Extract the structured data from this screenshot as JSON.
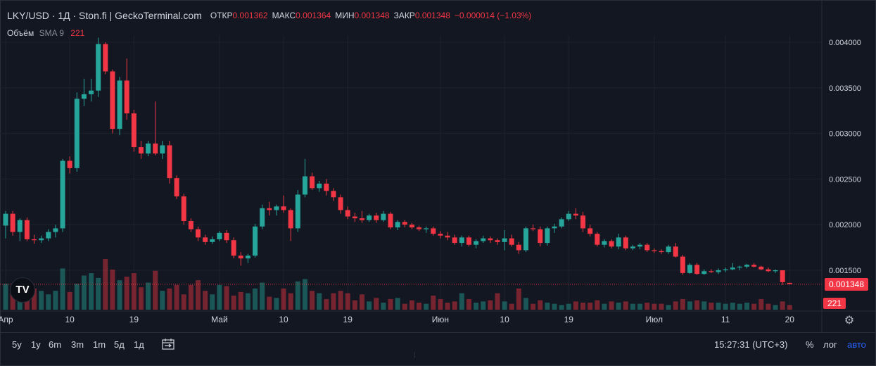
{
  "header": {
    "title": "LKY/USD · 1Д · Ston.fi | GeckoTerminal.com",
    "open_label": "ОТКР",
    "open_value": "0.001362",
    "high_label": "МАКС",
    "high_value": "0.001364",
    "low_label": "МИН",
    "low_value": "0.001348",
    "close_label": "ЗАКР",
    "close_value": "0.001348",
    "change": "−0.000014 (−1.03%)"
  },
  "volume_legend": {
    "label": "Объём",
    "sma": "SMA 9",
    "value": "221"
  },
  "price_tag": "0.001348",
  "volume_tag": "221",
  "toolbar": {
    "timeframes": [
      "5y",
      "1y",
      "6m",
      "3m",
      "1m",
      "5д",
      "1д"
    ],
    "clock": "15:27:31 (UTC+3)",
    "percent": "%",
    "log": "лог",
    "auto": "авто"
  },
  "colors": {
    "up": "#26a69a",
    "down": "#f23645",
    "background": "#131722",
    "grid": "#1e222d",
    "text": "#d1d4dc",
    "auto": "#2962ff"
  },
  "icons": {
    "settings": "gear-icon",
    "logo": "tradingview-logo-icon",
    "calendar": "calendar-range-icon"
  },
  "chart_data": {
    "type": "candlestick",
    "y_ticks": [
      "0.004000",
      "0.003500",
      "0.003000",
      "0.002500",
      "0.002000",
      "0.001500"
    ],
    "ylim": [
      0.0011,
      0.0042
    ],
    "x_tick_labels": [
      {
        "label": "Апр",
        "day": 0
      },
      {
        "label": "10",
        "day": 9
      },
      {
        "label": "19",
        "day": 18
      },
      {
        "label": "Май",
        "day": 30
      },
      {
        "label": "10",
        "day": 39
      },
      {
        "label": "19",
        "day": 48
      },
      {
        "label": "Июн",
        "day": 61
      },
      {
        "label": "10",
        "day": 70
      },
      {
        "label": "19",
        "day": 79
      },
      {
        "label": "Июл",
        "day": 91
      },
      {
        "label": "11",
        "day": 101
      },
      {
        "label": "20",
        "day": 110
      }
    ],
    "candles": [
      [
        0.00199,
        0.00215,
        0.00185,
        0.00212
      ],
      [
        0.00212,
        0.00215,
        0.00188,
        0.00192
      ],
      [
        0.00192,
        0.00207,
        0.00182,
        0.00205
      ],
      [
        0.00205,
        0.00208,
        0.00182,
        0.00184
      ],
      [
        0.00184,
        0.00189,
        0.00179,
        0.00183
      ],
      [
        0.00183,
        0.00188,
        0.0018,
        0.00185
      ],
      [
        0.00185,
        0.00195,
        0.00182,
        0.00192
      ],
      [
        0.00192,
        0.002,
        0.00186,
        0.00196
      ],
      [
        0.00196,
        0.00272,
        0.00192,
        0.0027
      ],
      [
        0.0027,
        0.00275,
        0.00256,
        0.00262
      ],
      [
        0.00262,
        0.00345,
        0.00258,
        0.00338
      ],
      [
        0.00338,
        0.0036,
        0.0033,
        0.00343
      ],
      [
        0.00343,
        0.0036,
        0.00335,
        0.00347
      ],
      [
        0.00347,
        0.00405,
        0.0034,
        0.00398
      ],
      [
        0.00398,
        0.004,
        0.00365,
        0.00368
      ],
      [
        0.00368,
        0.0037,
        0.003,
        0.00305
      ],
      [
        0.00305,
        0.00362,
        0.00298,
        0.00358
      ],
      [
        0.00358,
        0.00382,
        0.00315,
        0.00322
      ],
      [
        0.00322,
        0.00326,
        0.0028,
        0.00285
      ],
      [
        0.00285,
        0.00292,
        0.00272,
        0.00278
      ],
      [
        0.00278,
        0.00292,
        0.00275,
        0.00289
      ],
      [
        0.00289,
        0.00335,
        0.00276,
        0.00278
      ],
      [
        0.00278,
        0.00292,
        0.00272,
        0.00287
      ],
      [
        0.00287,
        0.00292,
        0.00245,
        0.00251
      ],
      [
        0.00251,
        0.00254,
        0.00228,
        0.00231
      ],
      [
        0.00231,
        0.00234,
        0.002,
        0.00204
      ],
      [
        0.00204,
        0.00207,
        0.00192,
        0.00195
      ],
      [
        0.00195,
        0.00198,
        0.00182,
        0.00186
      ],
      [
        0.00186,
        0.00189,
        0.00178,
        0.00181
      ],
      [
        0.00181,
        0.00187,
        0.00179,
        0.00184
      ],
      [
        0.00184,
        0.00193,
        0.00182,
        0.00191
      ],
      [
        0.00191,
        0.00194,
        0.0018,
        0.00183
      ],
      [
        0.00183,
        0.00186,
        0.00163,
        0.00166
      ],
      [
        0.00166,
        0.0017,
        0.00155,
        0.00163
      ],
      [
        0.00163,
        0.00168,
        0.00158,
        0.00166
      ],
      [
        0.00166,
        0.00201,
        0.00164,
        0.00198
      ],
      [
        0.00198,
        0.00222,
        0.00195,
        0.00218
      ],
      [
        0.00218,
        0.00225,
        0.0021,
        0.00216
      ],
      [
        0.00216,
        0.00222,
        0.0021,
        0.0022
      ],
      [
        0.0022,
        0.00232,
        0.00213,
        0.00216
      ],
      [
        0.00216,
        0.00218,
        0.00182,
        0.00196
      ],
      [
        0.00196,
        0.00238,
        0.00192,
        0.00233
      ],
      [
        0.00233,
        0.00272,
        0.0023,
        0.00253
      ],
      [
        0.00253,
        0.00257,
        0.00238,
        0.0024
      ],
      [
        0.0024,
        0.00248,
        0.00236,
        0.00245
      ],
      [
        0.00245,
        0.0025,
        0.00232,
        0.00237
      ],
      [
        0.00237,
        0.0024,
        0.00226,
        0.0023
      ],
      [
        0.0023,
        0.00233,
        0.00212,
        0.00216
      ],
      [
        0.00216,
        0.0022,
        0.00206,
        0.00209
      ],
      [
        0.00209,
        0.00213,
        0.00203,
        0.00207
      ],
      [
        0.00207,
        0.00215,
        0.00202,
        0.00205
      ],
      [
        0.00205,
        0.00212,
        0.00203,
        0.0021
      ],
      [
        0.0021,
        0.00213,
        0.00202,
        0.00205
      ],
      [
        0.00205,
        0.00215,
        0.00203,
        0.00212
      ],
      [
        0.00212,
        0.00214,
        0.00195,
        0.00197
      ],
      [
        0.00197,
        0.00205,
        0.00194,
        0.00203
      ],
      [
        0.00203,
        0.00205,
        0.00197,
        0.002
      ],
      [
        0.002,
        0.00202,
        0.00195,
        0.00197
      ],
      [
        0.00197,
        0.00199,
        0.00193,
        0.00195
      ],
      [
        0.00195,
        0.00198,
        0.00191,
        0.00196
      ],
      [
        0.00196,
        0.00198,
        0.00188,
        0.0019
      ],
      [
        0.0019,
        0.00193,
        0.00185,
        0.00188
      ],
      [
        0.00188,
        0.00192,
        0.00183,
        0.00186
      ],
      [
        0.00186,
        0.00189,
        0.00178,
        0.0018
      ],
      [
        0.0018,
        0.00188,
        0.00176,
        0.00186
      ],
      [
        0.00186,
        0.00188,
        0.00176,
        0.00178
      ],
      [
        0.00178,
        0.00184,
        0.00174,
        0.00182
      ],
      [
        0.00182,
        0.00188,
        0.0018,
        0.00185
      ],
      [
        0.00185,
        0.00187,
        0.0018,
        0.00183
      ],
      [
        0.00183,
        0.00185,
        0.00178,
        0.00181
      ],
      [
        0.00181,
        0.00194,
        0.00172,
        0.00185
      ],
      [
        0.00185,
        0.00189,
        0.00176,
        0.00178
      ],
      [
        0.00178,
        0.00181,
        0.00168,
        0.00172
      ],
      [
        0.00172,
        0.00198,
        0.0017,
        0.00196
      ],
      [
        0.00196,
        0.002,
        0.00193,
        0.00195
      ],
      [
        0.00195,
        0.00198,
        0.00176,
        0.0018
      ],
      [
        0.0018,
        0.00198,
        0.00177,
        0.00196
      ],
      [
        0.00196,
        0.00201,
        0.00191,
        0.00198
      ],
      [
        0.00198,
        0.00208,
        0.00196,
        0.00206
      ],
      [
        0.00206,
        0.00215,
        0.00204,
        0.00212
      ],
      [
        0.00212,
        0.00218,
        0.00206,
        0.0021
      ],
      [
        0.0021,
        0.00214,
        0.00192,
        0.00196
      ],
      [
        0.00196,
        0.002,
        0.00187,
        0.0019
      ],
      [
        0.0019,
        0.00192,
        0.00176,
        0.00178
      ],
      [
        0.00178,
        0.00184,
        0.00175,
        0.00182
      ],
      [
        0.00182,
        0.00184,
        0.00174,
        0.00176
      ],
      [
        0.00176,
        0.0019,
        0.00173,
        0.00186
      ],
      [
        0.00186,
        0.00188,
        0.00172,
        0.00174
      ],
      [
        0.00174,
        0.00178,
        0.00172,
        0.00176
      ],
      [
        0.00176,
        0.0018,
        0.00173,
        0.00178
      ],
      [
        0.00178,
        0.0018,
        0.0017,
        0.00172
      ],
      [
        0.00172,
        0.00174,
        0.00169,
        0.00171
      ],
      [
        0.00171,
        0.00173,
        0.00168,
        0.0017
      ],
      [
        0.0017,
        0.00178,
        0.00168,
        0.00176
      ],
      [
        0.00176,
        0.0018,
        0.00164,
        0.00165
      ],
      [
        0.00165,
        0.00167,
        0.00145,
        0.00147
      ],
      [
        0.00147,
        0.00158,
        0.00146,
        0.00156
      ],
      [
        0.00156,
        0.00158,
        0.00145,
        0.00146
      ],
      [
        0.00146,
        0.00151,
        0.00145,
        0.00149
      ],
      [
        0.00149,
        0.00151,
        0.00147,
        0.00148
      ],
      [
        0.00148,
        0.00152,
        0.00146,
        0.0015
      ],
      [
        0.0015,
        0.00153,
        0.00148,
        0.00151
      ],
      [
        0.00151,
        0.00158,
        0.0015,
        0.00153
      ],
      [
        0.00153,
        0.00155,
        0.0015,
        0.00154
      ],
      [
        0.00154,
        0.00157,
        0.00152,
        0.00156
      ],
      [
        0.00156,
        0.00158,
        0.00153,
        0.00154
      ],
      [
        0.00154,
        0.00155,
        0.0015,
        0.00151
      ],
      [
        0.00151,
        0.00153,
        0.00148,
        0.00149
      ],
      [
        0.00149,
        0.00151,
        0.00147,
        0.0015
      ],
      [
        0.0015,
        0.0015,
        0.00134,
        0.00137
      ],
      [
        0.001362,
        0.001364,
        0.001348,
        0.001348
      ]
    ],
    "volumes": [
      22,
      20,
      15,
      21,
      18,
      16,
      13,
      16,
      35,
      15,
      22,
      29,
      31,
      27,
      43,
      34,
      25,
      28,
      31,
      19,
      23,
      33,
      16,
      18,
      21,
      13,
      21,
      25,
      16,
      13,
      21,
      20,
      12,
      15,
      14,
      18,
      23,
      11,
      10,
      18,
      14,
      24,
      26,
      16,
      14,
      9,
      14,
      16,
      14,
      8,
      13,
      7,
      10,
      6,
      9,
      10,
      5,
      8,
      6,
      5,
      12,
      9,
      6,
      7,
      14,
      9,
      6,
      7,
      8,
      14,
      7,
      5,
      18,
      10,
      5,
      8,
      6,
      5,
      4,
      5,
      7,
      6,
      6,
      8,
      5,
      7,
      6,
      7,
      5,
      5,
      6,
      5,
      5,
      4,
      7,
      9,
      7,
      8,
      7,
      6,
      6,
      5,
      6,
      5,
      6,
      5,
      9,
      5,
      4,
      7,
      4
    ]
  }
}
